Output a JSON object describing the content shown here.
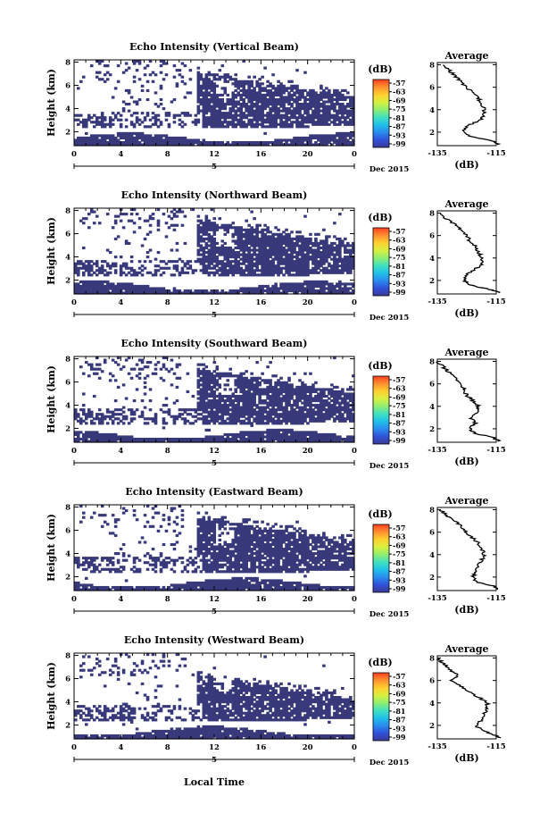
{
  "figure": {
    "xlabel": "Local Time",
    "date_label": "Dec 2015",
    "colorbar_unit": "(dB)",
    "average_unit": "(dB)",
    "colors": {
      "echo": "#38397a",
      "colormap": [
        "#3b3a97",
        "#3050d8",
        "#2a8cf0",
        "#20c0e8",
        "#40e0c0",
        "#90ee70",
        "#d8f040",
        "#ffd030",
        "#ff9030",
        "#ff4020"
      ]
    }
  },
  "chart_data": [
    {
      "type": "heatmap",
      "title": "Echo Intensity (Vertical Beam)",
      "ylabel": "Height (km)",
      "x_ticks": [
        "0",
        "4",
        "8",
        "12",
        "16",
        "20",
        "0"
      ],
      "x_range_hours": [
        0,
        24
      ],
      "y_ticks": [
        "2",
        "4",
        "6",
        "8"
      ],
      "y_range_km": [
        0.8,
        8.2
      ],
      "day_marker": "5",
      "colorbar_ticks": [
        "-57",
        "-63",
        "-69",
        "-75",
        "-81",
        "-87",
        "-93",
        "-99"
      ],
      "average": {
        "title": "Average",
        "x_ticks": [
          "-135",
          "-115"
        ],
        "xlim": [
          -135,
          -115
        ],
        "y_ticks": [
          "2",
          "4",
          "6",
          "8"
        ],
        "profile": [
          [
            -114,
            0.9
          ],
          [
            -116,
            1.2
          ],
          [
            -124,
            1.6
          ],
          [
            -126,
            2.0
          ],
          [
            -125,
            2.5
          ],
          [
            -121,
            3.0
          ],
          [
            -119,
            3.5
          ],
          [
            -119,
            4.0
          ],
          [
            -120,
            4.5
          ],
          [
            -121,
            5.0
          ],
          [
            -123,
            5.5
          ],
          [
            -125,
            6.0
          ],
          [
            -127,
            6.5
          ],
          [
            -129,
            7.0
          ],
          [
            -131,
            7.5
          ],
          [
            -133,
            8.0
          ]
        ]
      }
    },
    {
      "type": "heatmap",
      "title": "Echo Intensity (Northward Beam)",
      "ylabel": "Height (km)",
      "x_ticks": [
        "0",
        "4",
        "8",
        "12",
        "16",
        "20",
        "0"
      ],
      "x_range_hours": [
        0,
        24
      ],
      "y_ticks": [
        "2",
        "4",
        "6",
        "8"
      ],
      "y_range_km": [
        0.8,
        8.2
      ],
      "day_marker": "5",
      "colorbar_ticks": [
        "-57",
        "-63",
        "-69",
        "-75",
        "-81",
        "-87",
        "-93",
        "-99"
      ],
      "average": {
        "title": "Average",
        "x_ticks": [
          "-135",
          "-115"
        ],
        "xlim": [
          -135,
          -115
        ],
        "y_ticks": [
          "2",
          "4",
          "6",
          "8"
        ],
        "profile": [
          [
            -114,
            0.9
          ],
          [
            -117,
            1.2
          ],
          [
            -124,
            1.6
          ],
          [
            -126,
            2.0
          ],
          [
            -125,
            2.5
          ],
          [
            -122,
            3.0
          ],
          [
            -120,
            3.5
          ],
          [
            -120,
            4.0
          ],
          [
            -121,
            4.5
          ],
          [
            -122,
            5.0
          ],
          [
            -124,
            5.5
          ],
          [
            -125,
            6.0
          ],
          [
            -127,
            6.5
          ],
          [
            -129,
            7.0
          ],
          [
            -132,
            7.5
          ],
          [
            -134,
            8.0
          ]
        ]
      }
    },
    {
      "type": "heatmap",
      "title": "Echo Intensity (Southward Beam)",
      "ylabel": "Height (km)",
      "x_ticks": [
        "0",
        "4",
        "8",
        "12",
        "16",
        "20",
        "0"
      ],
      "x_range_hours": [
        0,
        24
      ],
      "y_ticks": [
        "2",
        "4",
        "6",
        "8"
      ],
      "y_range_km": [
        0.8,
        8.2
      ],
      "day_marker": "5",
      "colorbar_ticks": [
        "-57",
        "-63",
        "-69",
        "-75",
        "-81",
        "-87",
        "-93",
        "-99"
      ],
      "average": {
        "title": "Average",
        "x_ticks": [
          "-135",
          "-115"
        ],
        "xlim": [
          -135,
          -115
        ],
        "y_ticks": [
          "2",
          "4",
          "6",
          "8"
        ],
        "profile": [
          [
            -114,
            0.9
          ],
          [
            -116,
            1.2
          ],
          [
            -122,
            1.6
          ],
          [
            -124,
            2.0
          ],
          [
            -122,
            2.5
          ],
          [
            -124,
            3.0
          ],
          [
            -121,
            3.5
          ],
          [
            -121,
            4.0
          ],
          [
            -123,
            4.5
          ],
          [
            -125,
            5.0
          ],
          [
            -126,
            5.5
          ],
          [
            -127,
            6.0
          ],
          [
            -129,
            6.5
          ],
          [
            -131,
            7.0
          ],
          [
            -133,
            7.5
          ],
          [
            -135,
            8.0
          ]
        ]
      }
    },
    {
      "type": "heatmap",
      "title": "Echo Intensity (Eastward Beam)",
      "ylabel": "Height (km)",
      "x_ticks": [
        "0",
        "4",
        "8",
        "12",
        "16",
        "20",
        "0"
      ],
      "x_range_hours": [
        0,
        24
      ],
      "y_ticks": [
        "2",
        "4",
        "6",
        "8"
      ],
      "y_range_km": [
        0.8,
        8.2
      ],
      "day_marker": "5",
      "colorbar_ticks": [
        "-57",
        "-63",
        "-69",
        "-75",
        "-81",
        "-87",
        "-93",
        "-99"
      ],
      "average": {
        "title": "Average",
        "x_ticks": [
          "-135",
          "-115"
        ],
        "xlim": [
          -135,
          -115
        ],
        "y_ticks": [
          "2",
          "4",
          "6",
          "8"
        ],
        "profile": [
          [
            -114,
            0.9
          ],
          [
            -116,
            1.2
          ],
          [
            -122,
            1.6
          ],
          [
            -123,
            2.0
          ],
          [
            -122,
            2.5
          ],
          [
            -121,
            3.0
          ],
          [
            -120,
            3.5
          ],
          [
            -119,
            4.0
          ],
          [
            -120,
            4.5
          ],
          [
            -121,
            5.0
          ],
          [
            -123,
            5.5
          ],
          [
            -125,
            6.0
          ],
          [
            -127,
            6.5
          ],
          [
            -129,
            7.0
          ],
          [
            -132,
            7.5
          ],
          [
            -134,
            8.0
          ]
        ]
      }
    },
    {
      "type": "heatmap",
      "title": "Echo Intensity (Westward Beam)",
      "ylabel": "Height (km)",
      "x_ticks": [
        "0",
        "4",
        "8",
        "12",
        "16",
        "20",
        "0"
      ],
      "x_range_hours": [
        0,
        24
      ],
      "y_ticks": [
        "2",
        "4",
        "6",
        "8"
      ],
      "y_range_km": [
        0.8,
        8.2
      ],
      "day_marker": "5",
      "colorbar_ticks": [
        "-57",
        "-63",
        "-69",
        "-75",
        "-81",
        "-87",
        "-93",
        "-99"
      ],
      "average": {
        "title": "Average",
        "x_ticks": [
          "-135",
          "-115"
        ],
        "xlim": [
          -135,
          -115
        ],
        "y_ticks": [
          "2",
          "4",
          "6",
          "8"
        ],
        "profile": [
          [
            -114,
            0.9
          ],
          [
            -116,
            1.2
          ],
          [
            -120,
            1.6
          ],
          [
            -122,
            2.0
          ],
          [
            -120,
            2.5
          ],
          [
            -119,
            3.0
          ],
          [
            -118,
            3.5
          ],
          [
            -118,
            4.0
          ],
          [
            -121,
            4.5
          ],
          [
            -124,
            5.0
          ],
          [
            -127,
            5.5
          ],
          [
            -130,
            6.0
          ],
          [
            -128,
            6.5
          ],
          [
            -131,
            7.0
          ],
          [
            -133,
            7.5
          ],
          [
            -135,
            8.0
          ]
        ]
      }
    }
  ]
}
